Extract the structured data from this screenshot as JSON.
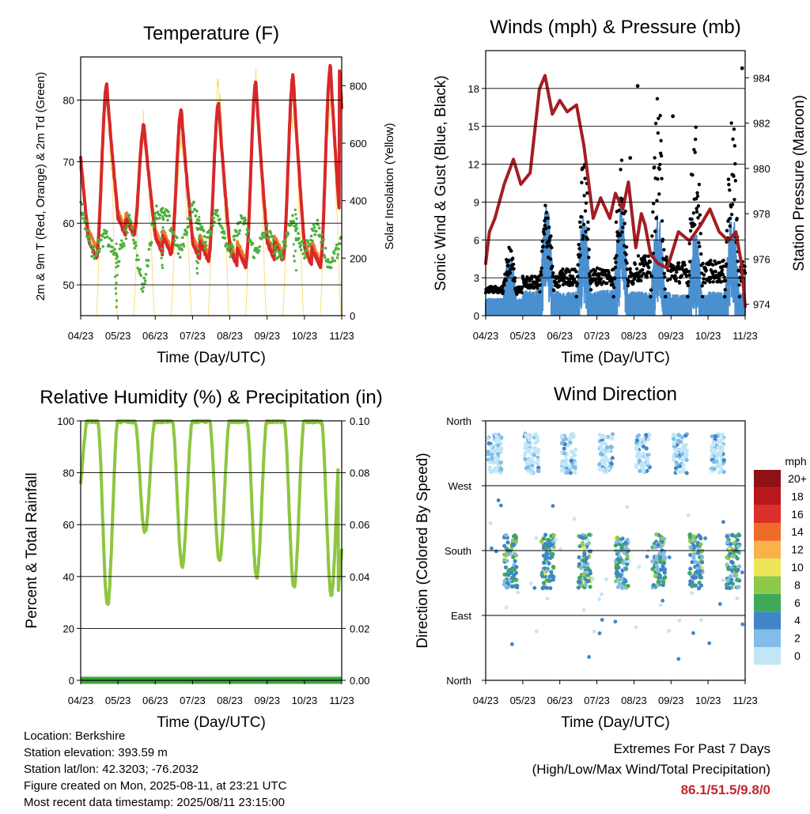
{
  "colors": {
    "temp_red": "#d8282a",
    "temp_orange": "#f07a28",
    "dewpoint_green": "#4caf3c",
    "solar_yellow": "#f7e07a",
    "wind_blue": "#4a90d0",
    "gust_black": "#000000",
    "pressure_maroon": "#a31d24",
    "rh_green": "#8dc63f",
    "precip_green": "#3ea43a"
  },
  "chart_data": [
    {
      "id": "temperature",
      "type": "line",
      "title": "Temperature (F)",
      "xlabel": "Time (Day/UTC)",
      "ylabel": "2m & 9m T (Red, Orange) & 2m Td (Green)",
      "ylabel_right": "Solar Insolation (Yellow)",
      "x_ticks": [
        "04/23",
        "05/23",
        "06/23",
        "07/23",
        "08/23",
        "09/23",
        "10/23",
        "11/23"
      ],
      "ylim": [
        45,
        87
      ],
      "yticks": [
        50,
        60,
        70,
        80
      ],
      "ylim_right": [
        0,
        900
      ],
      "yticks_right": [
        0,
        200,
        400,
        600,
        800
      ],
      "grid": true,
      "series": [
        {
          "name": "2m T",
          "color": "#d8282a",
          "lows": [
            54.5,
            58,
            55,
            54,
            53,
            54,
            53
          ],
          "highs": [
            82.5,
            76,
            78.5,
            79.5,
            83,
            84,
            85.5
          ],
          "start": 70.5,
          "end": 79
        },
        {
          "name": "9m T",
          "color": "#f07a28",
          "lows": [
            56,
            59,
            56,
            55,
            54,
            55,
            54
          ],
          "highs": [
            81.5,
            75,
            77.5,
            79,
            82,
            83,
            85
          ],
          "start": 69,
          "end": 80
        },
        {
          "name": "2m Td",
          "color": "#4caf3c",
          "values": [
            63,
            55,
            58,
            54,
            61,
            49,
            62,
            61,
            55,
            63,
            57,
            62,
            55,
            61,
            55,
            59,
            54,
            61,
            55,
            60,
            53,
            57
          ]
        },
        {
          "name": "Solar",
          "color": "#f7e07a",
          "peaks": [
            820,
            750,
            680,
            880,
            860,
            830,
            840
          ]
        }
      ]
    },
    {
      "id": "winds",
      "type": "scatter",
      "title": "Winds (mph) & Pressure (mb)",
      "xlabel": "Time (Day/UTC)",
      "ylabel": "Sonic Wind & Gust (Blue, Black)",
      "ylabel_right": "Station Pressure (Maroon)",
      "x_ticks": [
        "04/23",
        "05/23",
        "06/23",
        "07/23",
        "08/23",
        "09/23",
        "10/23",
        "11/23"
      ],
      "ylim": [
        0,
        21
      ],
      "yticks": [
        0,
        3,
        6,
        9,
        12,
        15,
        18
      ],
      "ylim_right": [
        973.5,
        985.2
      ],
      "yticks_right": [
        974,
        976,
        978,
        980,
        982,
        984
      ],
      "grid": true,
      "series": [
        {
          "name": "Wind",
          "color": "#4a90d0",
          "daily_max": [
            4,
            8,
            7.5,
            8.5,
            7.5,
            6,
            7.5,
            9
          ]
        },
        {
          "name": "Gust",
          "color": "#000000",
          "daily_max": [
            4.5,
            9,
            12.5,
            13,
            18,
            15.5,
            16,
            19
          ]
        },
        {
          "name": "Pressure",
          "color": "#a31d24",
          "x": [
            0,
            0.1,
            0.25,
            0.5,
            0.75,
            0.95,
            1.2,
            1.45,
            1.6,
            1.8,
            2.0,
            2.2,
            2.45,
            2.65,
            2.9,
            3.1,
            3.35,
            3.5,
            3.7,
            3.85,
            4.05,
            4.2,
            4.3,
            4.45,
            4.65,
            4.9,
            5.2,
            5.5,
            5.8,
            6.05,
            6.3,
            6.55,
            6.75,
            6.9,
            7.0
          ],
          "values": [
            975.8,
            977.2,
            977.8,
            979.3,
            980.4,
            979.3,
            979.8,
            983.5,
            984.1,
            982.4,
            983.0,
            982.5,
            982.8,
            981.0,
            977.8,
            978.7,
            977.8,
            978.9,
            978.2,
            979.4,
            976.5,
            978.0,
            977.5,
            976.2,
            975.8,
            975.6,
            977.2,
            976.8,
            977.5,
            978.2,
            977.2,
            976.8,
            977.2,
            975.8,
            973.9
          ]
        }
      ]
    },
    {
      "id": "humidity",
      "type": "line",
      "title": "Relative Humidity (%) & Precipitation (in)",
      "xlabel": "Time (Day/UTC)",
      "ylabel": "Percent & Total Rainfall",
      "x_ticks": [
        "04/23",
        "05/23",
        "06/23",
        "07/23",
        "08/23",
        "09/23",
        "10/23",
        "11/23"
      ],
      "ylim": [
        0,
        100
      ],
      "yticks": [
        0,
        20,
        40,
        60,
        80,
        100
      ],
      "ylim_right": [
        0,
        0.1
      ],
      "yticks_right": [
        "0.00",
        "0.02",
        "0.04",
        "0.06",
        "0.08",
        "0.10"
      ],
      "grid": true,
      "series": [
        {
          "name": "RH",
          "color": "#8dc63f",
          "lows": [
            29,
            57,
            44,
            46,
            40,
            36,
            33
          ],
          "start": 76,
          "end": 50
        },
        {
          "name": "Precipitation",
          "color": "#3ea43a",
          "values": [
            0,
            0
          ]
        }
      ]
    },
    {
      "id": "wind_direction",
      "type": "scatter",
      "title": "Wind Direction",
      "xlabel": "Time (Day/UTC)",
      "ylabel": "Direction (Colored By Speed)",
      "x_ticks": [
        "04/23",
        "05/23",
        "06/23",
        "07/23",
        "08/23",
        "09/23",
        "10/23",
        "11/23"
      ],
      "y_ticks": [
        "North",
        "East",
        "South",
        "West",
        "North"
      ],
      "ylim": [
        0,
        360
      ],
      "colorbar": {
        "title": "mph",
        "labels": [
          "0",
          "2",
          "4",
          "6",
          "8",
          "10",
          "12",
          "14",
          "16",
          "18",
          "20+"
        ],
        "colors": [
          "#c2e6f8",
          "#82bce8",
          "#3f86c6",
          "#3fa85b",
          "#8ec94a",
          "#ece55a",
          "#f8b24b",
          "#f06a2a",
          "#d9302a",
          "#b8181c",
          "#8e1116"
        ]
      }
    }
  ],
  "info": {
    "location": "Location: Berkshire",
    "elevation": "Station elevation: 393.59 m",
    "latlon": "Station lat/lon: 42.3203; -76.2032",
    "created": "Figure created on Mon, 2025-08-11, at 23:21 UTC",
    "timestamp": "Most recent data timestamp: 2025/08/11 23:15:00"
  },
  "extremes": {
    "title": "Extremes For Past 7 Days",
    "subtitle": "(High/Low/Max Wind/Total Precipitation)",
    "values": "86.1/51.5/9.8/0"
  }
}
